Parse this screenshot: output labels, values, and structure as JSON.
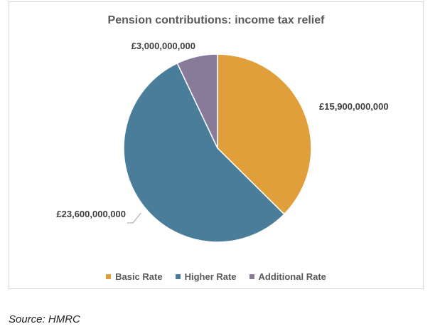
{
  "chart_data": {
    "type": "pie",
    "title": "Pension contributions: income tax relief",
    "slices": [
      {
        "label": "Basic Rate",
        "value": 15900000000,
        "value_label": "£15,900,000,000",
        "color": "#E09F3A"
      },
      {
        "label": "Higher Rate",
        "value": 23600000000,
        "value_label": "£23,600,000,000",
        "color": "#4A7D99"
      },
      {
        "label": "Additional Rate",
        "value": 3000000000,
        "value_label": "£3,000,000,000",
        "color": "#887A99"
      }
    ],
    "legend_position": "bottom"
  },
  "source": "Source: HMRC"
}
